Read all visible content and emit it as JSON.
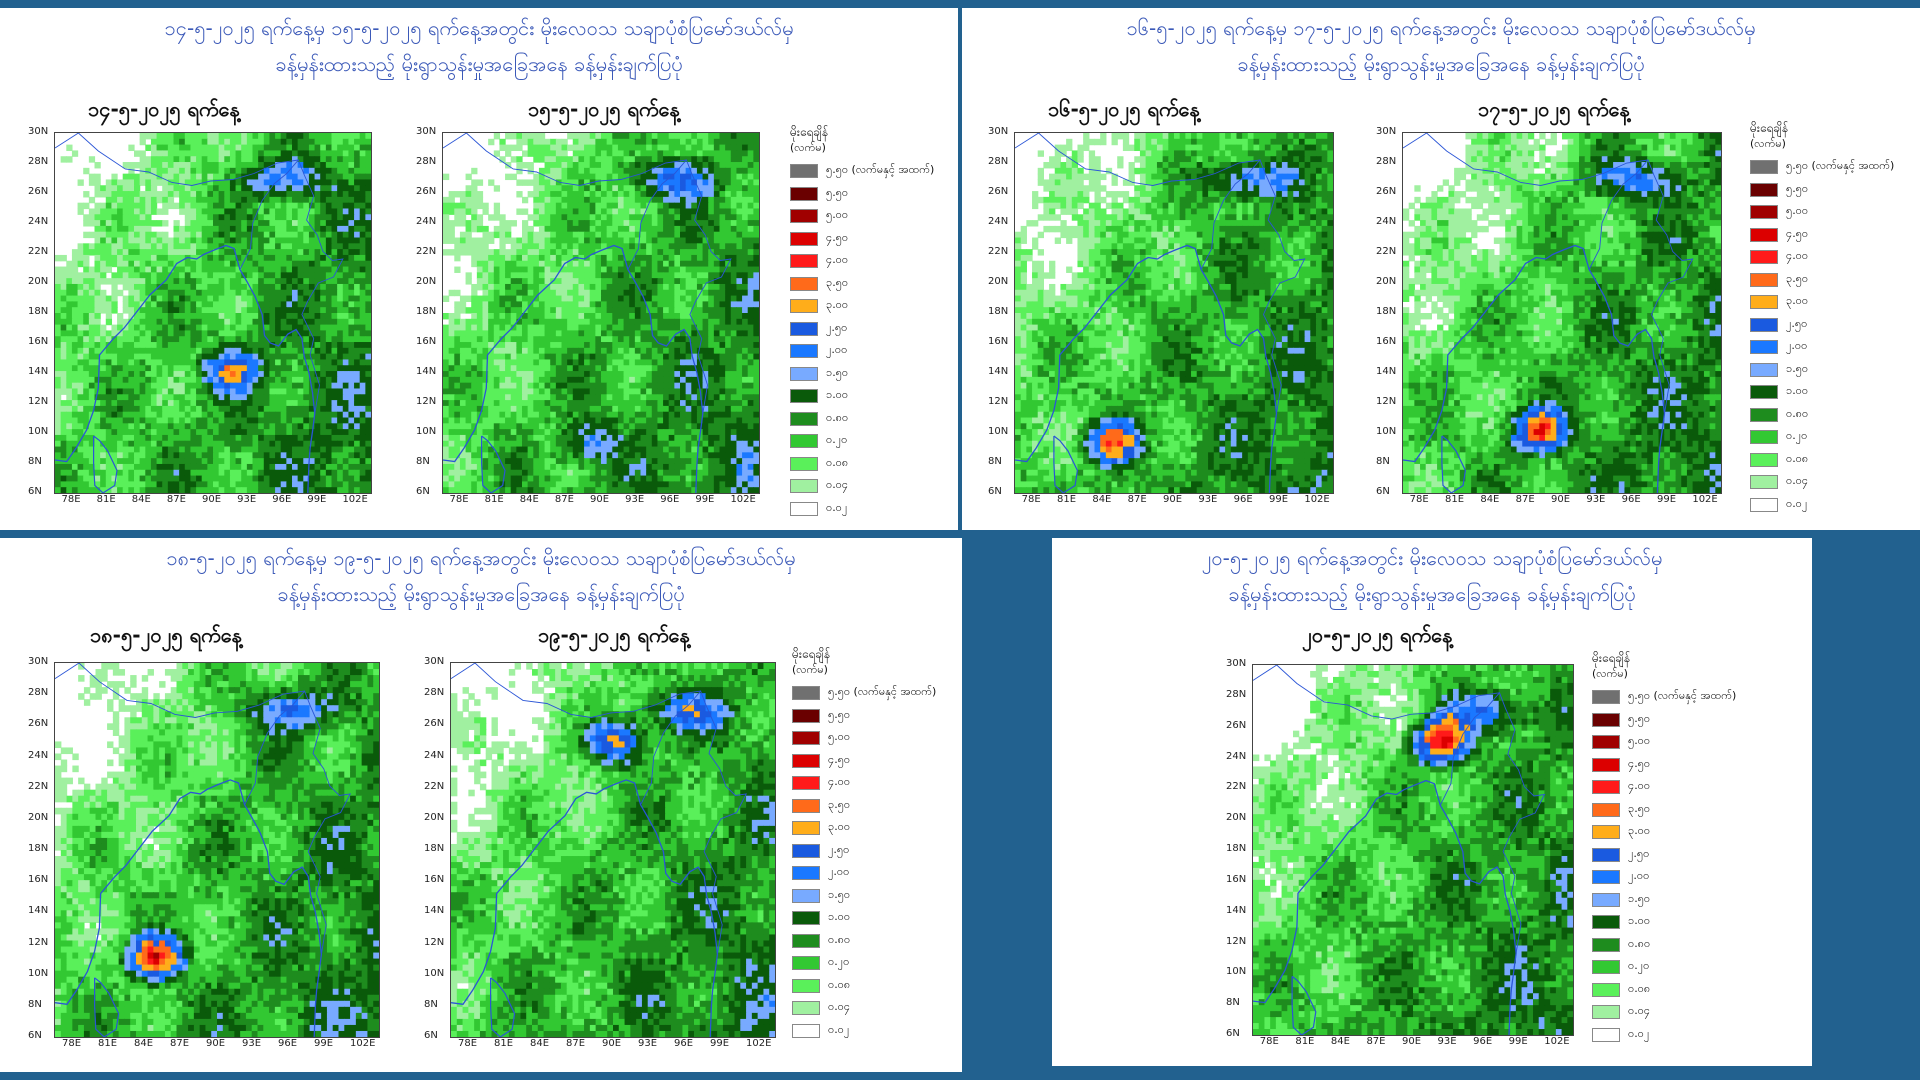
{
  "colors": {
    "background": "#22618f",
    "title_text": "#3b59b8",
    "land_blank": "#ffffff",
    "coast": "#2a55d6"
  },
  "legend": {
    "title": "မိုးရေချိန်",
    "unit": "(လက်မ)",
    "items": [
      {
        "label": "၅.၅၀ (လက်မနှင့် အထက်)",
        "color": "#707070"
      },
      {
        "label": "၅.၅၀",
        "color": "#6a0000"
      },
      {
        "label": "၅.၀၀",
        "color": "#a00000"
      },
      {
        "label": "၄.၅၀",
        "color": "#dc0000"
      },
      {
        "label": "၄.၀၀",
        "color": "#ff1a1a"
      },
      {
        "label": "၃.၅၀",
        "color": "#ff6a1a"
      },
      {
        "label": "၃.၀၀",
        "color": "#ffad1a"
      },
      {
        "label": "၂.၅၀",
        "color": "#1a5ae0"
      },
      {
        "label": "၂.၀၀",
        "color": "#1a78ff"
      },
      {
        "label": "၁.၅၀",
        "color": "#78aaff"
      },
      {
        "label": "၁.၀၀",
        "color": "#0a5a0a"
      },
      {
        "label": "၀.၈၀",
        "color": "#1e8c1e"
      },
      {
        "label": "၀.၂၀",
        "color": "#32c832"
      },
      {
        "label": "၀.၀၈",
        "color": "#5af05a"
      },
      {
        "label": "၀.၀၄",
        "color": "#a0f0a0"
      },
      {
        "label": "၀.၀၂",
        "color": "#ffffff"
      }
    ]
  },
  "axes": {
    "y_ticks": [
      "30N",
      "28N",
      "26N",
      "24N",
      "22N",
      "20N",
      "18N",
      "16N",
      "14N",
      "12N",
      "10N",
      "8N",
      "6N"
    ],
    "x_ticks": [
      "78E",
      "81E",
      "84E",
      "87E",
      "90E",
      "93E",
      "96E",
      "99E",
      "102E"
    ]
  },
  "panels": [
    {
      "title_line1": "၁၄-၅-၂၀၂၅ ရက်နေ့မှ ၁၅-၅-၂၀၂၅ ရက်နေ့အတွင်း မိုးလေဝသ သချာပုံစံပြမော်ဒယ်လ်မှ",
      "title_line2": "ခန့်မှန်းထားသည့် မိုးရွာသွန်းမှုအခြေအနေ ခန့်မှန်းချက်ပြပုံ",
      "maps": [
        {
          "date": "၁၄-၅-၂၀၂၅ ရက်နေ့"
        },
        {
          "date": "၁၅-၅-၂၀၂၅ ရက်နေ့"
        }
      ]
    },
    {
      "title_line1": "၁၆-၅-၂၀၂၅ ရက်နေ့မှ ၁၇-၅-၂၀၂၅ ရက်နေ့အတွင်း မိုးလေဝသ သချာပုံစံပြမော်ဒယ်လ်မှ",
      "title_line2": "ခန့်မှန်းထားသည့် မိုးရွာသွန်းမှုအခြေအနေ ခန့်မှန်းချက်ပြပုံ",
      "maps": [
        {
          "date": "၁၆-၅-၂၀၂၅ ရက်နေ့"
        },
        {
          "date": "၁၇-၅-၂၀၂၅ ရက်နေ့"
        }
      ]
    },
    {
      "title_line1": "၁၈-၅-၂၀၂၅ ရက်နေ့မှ ၁၉-၅-၂၀၂၅ ရက်နေ့အတွင်း မိုးလေဝသ သချာပုံစံပြမော်ဒယ်လ်မှ",
      "title_line2": "ခန့်မှန်းထားသည့် မိုးရွာသွန်းမှုအခြေအနေ ခန့်မှန်းချက်ပြပုံ",
      "maps": [
        {
          "date": "၁၈-၅-၂၀၂၅ ရက်နေ့"
        },
        {
          "date": "၁၉-၅-၂၀၂၅ ရက်နေ့"
        }
      ]
    },
    {
      "title_line1": "၂၀-၅-၂၀၂၅ ရက်နေ့အတွင်း မိုးလေဝသ သချာပုံစံပြမော်ဒယ်လ်မှ",
      "title_line2": "ခန့်မှန်းထားသည့် မိုးရွာသွန်းမှုအခြေအနေ ခန့်မှန်းချက်ပြပုံ",
      "maps": [
        {
          "date": "၂၀-၅-၂၀၂၅ ရက်နေ့"
        }
      ]
    }
  ]
}
